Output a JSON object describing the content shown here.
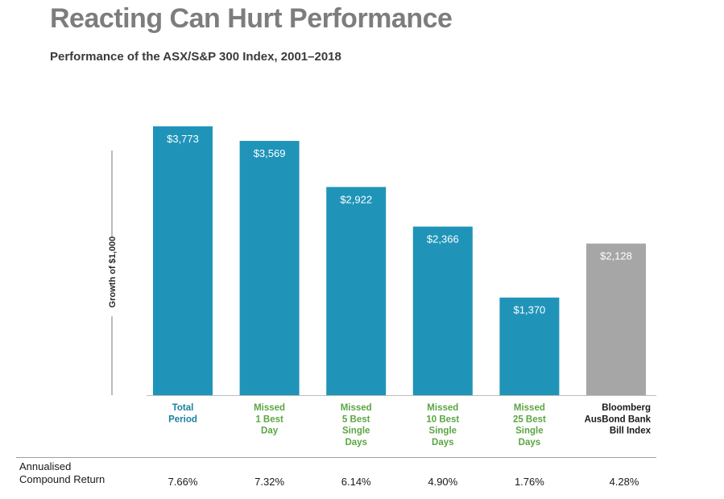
{
  "title": "Reacting Can Hurt Performance",
  "subtitle": "Performance of the ASX/S&P 300 Index, 2001–2018",
  "chart_data": {
    "type": "bar",
    "ylabel": "Growth of $1,000",
    "ylim": [
      0,
      3773
    ],
    "categories": [
      [
        "Total",
        "Period"
      ],
      [
        "Missed",
        "1 Best",
        "Day"
      ],
      [
        "Missed",
        "5 Best",
        "Single",
        "Days"
      ],
      [
        "Missed",
        "10 Best",
        "Single",
        "Days"
      ],
      [
        "Missed",
        "25 Best",
        "Single",
        "Days"
      ],
      [
        "Bloomberg",
        "AusBond Bank",
        "Bill Index"
      ]
    ],
    "values": [
      3773,
      3569,
      2922,
      2366,
      1370,
      2128
    ],
    "value_labels": [
      "$3,773",
      "$3,569",
      "$2,922",
      "$2,366",
      "$1,370",
      "$2,128"
    ],
    "bar_colors": [
      "#1f94b8",
      "#1f94b8",
      "#1f94b8",
      "#1f94b8",
      "#1f94b8",
      "#a6a6a6"
    ],
    "category_colors": [
      "#1a7fa3",
      "#5aa642",
      "#5aa642",
      "#5aa642",
      "#5aa642",
      "#1a1a1a"
    ],
    "returns_label": [
      "Annualised",
      "Compound Return"
    ],
    "returns": [
      "7.66%",
      "7.32%",
      "6.14%",
      "4.90%",
      "1.76%",
      "4.28%"
    ]
  }
}
